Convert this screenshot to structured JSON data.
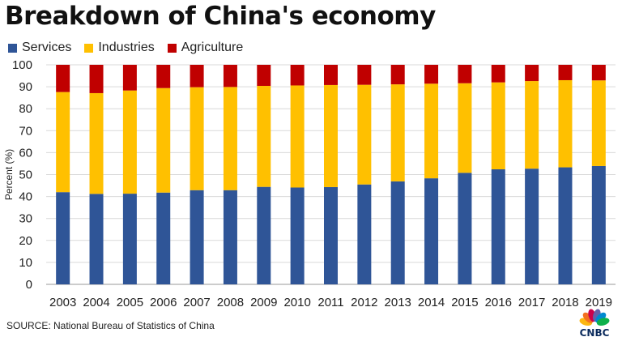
{
  "chart_data": {
    "type": "bar",
    "stacked": true,
    "title": "Breakdown of China's economy",
    "xlabel": "",
    "ylabel": "Percent (%)",
    "ylim": [
      0,
      100
    ],
    "yticks": [
      0,
      10,
      20,
      30,
      40,
      50,
      60,
      70,
      80,
      90,
      100
    ],
    "grid": true,
    "legend_position": "top-left",
    "categories": [
      "2003",
      "2004",
      "2005",
      "2006",
      "2007",
      "2008",
      "2009",
      "2010",
      "2011",
      "2012",
      "2013",
      "2014",
      "2015",
      "2016",
      "2017",
      "2018",
      "2019"
    ],
    "series": [
      {
        "name": "Services",
        "color": "#2f5597",
        "values": [
          42.0,
          41.2,
          41.3,
          41.8,
          42.9,
          42.9,
          44.4,
          44.1,
          44.3,
          45.5,
          46.9,
          48.3,
          50.8,
          52.4,
          52.7,
          53.3,
          53.9
        ]
      },
      {
        "name": "Industries",
        "color": "#ffc000",
        "values": [
          45.6,
          45.9,
          47.0,
          47.6,
          46.9,
          47.0,
          46.0,
          46.5,
          46.5,
          45.4,
          44.2,
          43.1,
          40.8,
          39.6,
          39.9,
          39.7,
          39.0
        ]
      },
      {
        "name": "Agriculture",
        "color": "#c00000",
        "values": [
          12.4,
          12.9,
          11.7,
          10.6,
          10.2,
          10.1,
          9.6,
          9.4,
          9.2,
          9.1,
          8.9,
          8.6,
          8.4,
          8.0,
          7.4,
          7.0,
          7.1
        ]
      }
    ]
  },
  "source_text": "SOURCE: National Bureau of Statistics of China",
  "logo_text": "CNBC",
  "logo_colors": [
    "#fcb711",
    "#f37021",
    "#cc004c",
    "#6460aa",
    "#0089d0",
    "#0db14b"
  ]
}
